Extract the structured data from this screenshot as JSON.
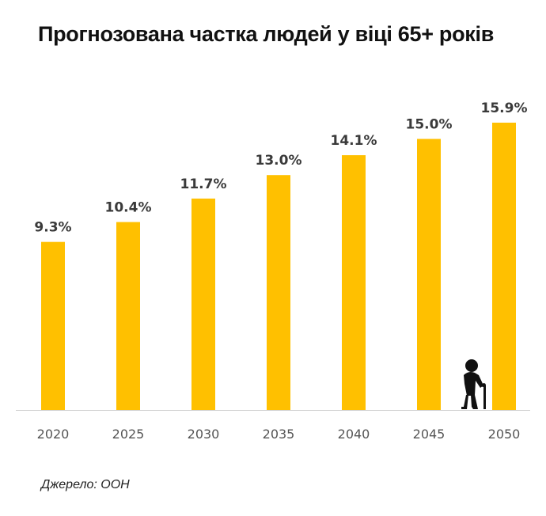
{
  "colors": {
    "bar": "#FFC000",
    "axis": "#cfcfcf",
    "icon": "#111111"
  },
  "icon": "elderly-person-with-cane-icon",
  "source": "Джерело: ООН",
  "chart_data": {
    "type": "bar",
    "title": "Прогнозована частка людей у віці 65+ років",
    "categories": [
      "2020",
      "2025",
      "2030",
      "2035",
      "2040",
      "2045",
      "2050"
    ],
    "values": [
      9.3,
      10.4,
      11.7,
      13.0,
      14.1,
      15.0,
      15.9
    ],
    "value_labels": [
      "9.3%",
      "10.4%",
      "11.7%",
      "13.0%",
      "14.1%",
      "15.0%",
      "15.9%"
    ],
    "xlabel": "",
    "ylabel": "",
    "ylim": [
      0,
      15.9
    ],
    "grid": false,
    "legend": "none"
  }
}
